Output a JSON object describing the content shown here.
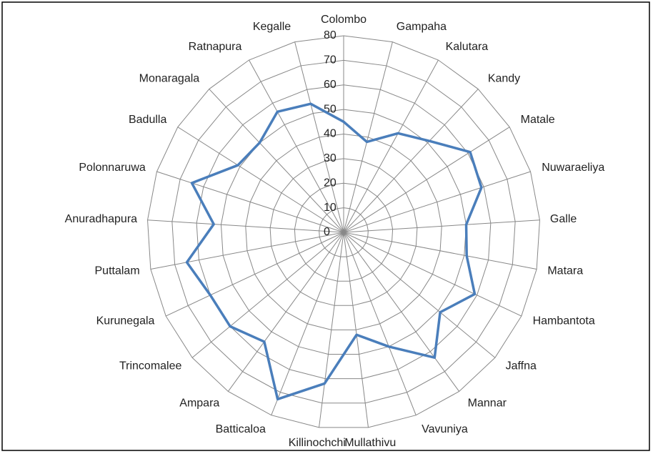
{
  "chart_data": {
    "type": "radar",
    "categories": [
      "Colombo",
      "Gampaha",
      "Kalutara",
      "Kandy",
      "Matale",
      "Nuwaraeliya",
      "Galle",
      "Matara",
      "Hambantota",
      "Jaffna",
      "Mannar",
      "Vavuniya",
      "Mullathivu",
      "Killinochchi",
      "Batticaloa",
      "Ampara",
      "Trincomalee",
      "Kurunegala",
      "Puttalam",
      "Anuradhapura",
      "Polonnaruwa",
      "Badulla",
      "Monaragala",
      "Ratnapura",
      "Kegalle"
    ],
    "values": [
      45,
      38,
      46,
      51,
      61,
      59,
      50,
      51,
      59,
      51,
      63,
      50,
      42,
      62,
      73,
      55,
      60,
      60,
      65,
      53,
      65,
      51,
      50,
      56,
      54
    ],
    "color": "#4a7ebb",
    "rlim": [
      0,
      80
    ],
    "rticks": [
      0,
      10,
      20,
      30,
      40,
      50,
      60,
      70,
      80
    ],
    "grid": true
  }
}
